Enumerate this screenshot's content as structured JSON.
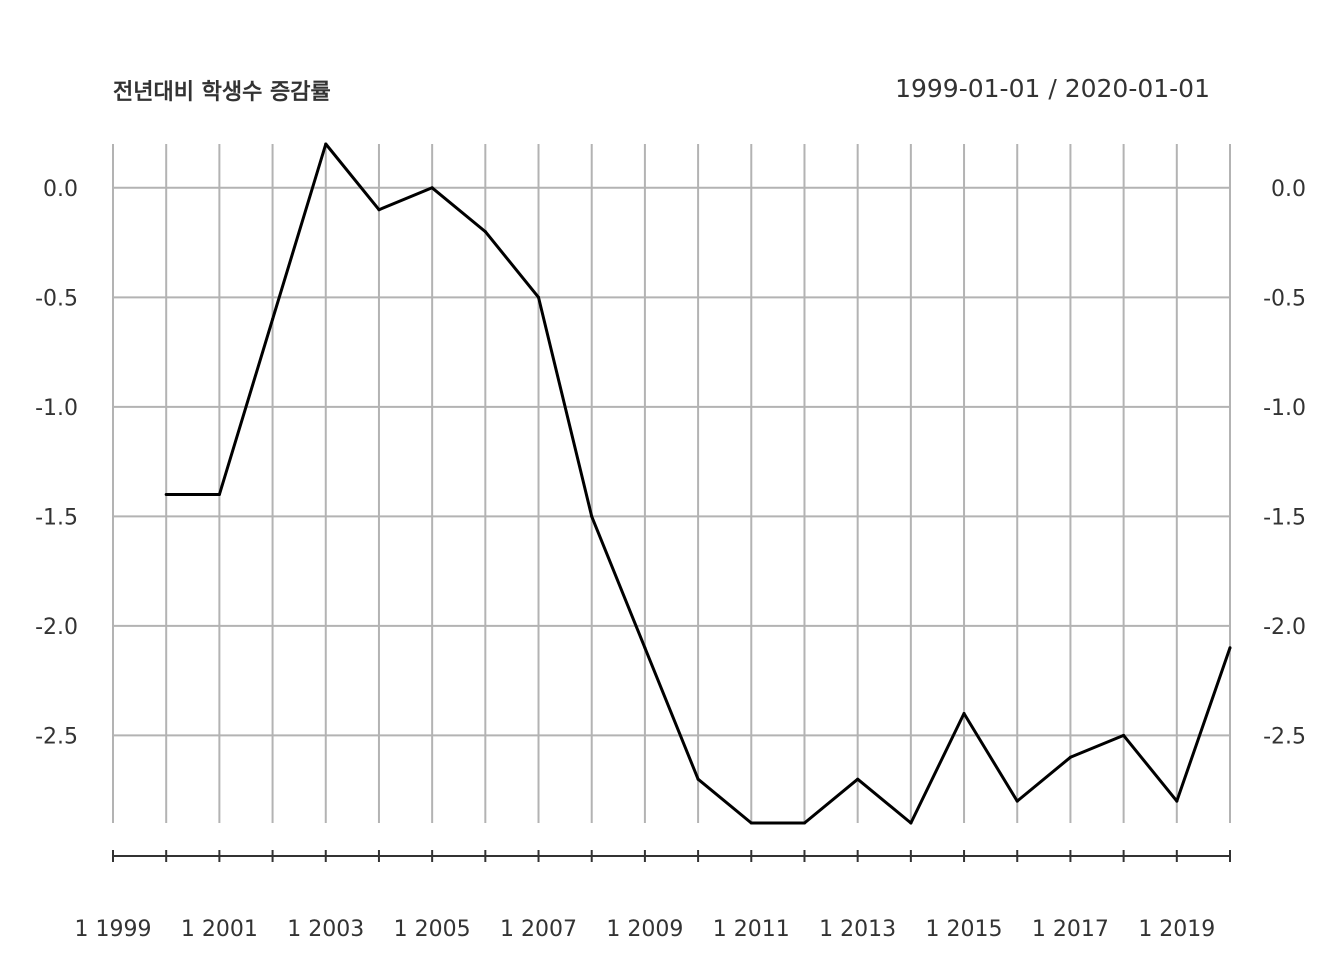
{
  "chart_data": {
    "type": "line",
    "title": "전년대비 학생수 증감률",
    "date_range": "1999-01-01 / 2020-01-01",
    "x": [
      2000,
      2001,
      2002,
      2003,
      2004,
      2005,
      2006,
      2007,
      2008,
      2009,
      2010,
      2011,
      2012,
      2013,
      2014,
      2015,
      2016,
      2017,
      2018,
      2019,
      2020
    ],
    "series": [
      {
        "values": [
          -1.4,
          -1.4,
          -0.6,
          0.2,
          -0.1,
          0.0,
          -0.2,
          -0.5,
          -1.5,
          -2.1,
          -2.7,
          -2.9,
          -2.9,
          -2.7,
          -2.9,
          -2.4,
          -2.8,
          -2.6,
          -2.5,
          -2.8,
          -2.1
        ]
      }
    ],
    "xlim": [
      1999,
      2020
    ],
    "ylim": [
      -2.9,
      0.2
    ],
    "y_ticks": [
      0.0,
      -0.5,
      -1.0,
      -1.5,
      -2.0,
      -2.5
    ],
    "y_tick_labels": [
      "0.0",
      "-0.5",
      "-1.0",
      "-1.5",
      "-2.0",
      "-2.5"
    ],
    "x_ticks": [
      1999,
      2000,
      2001,
      2002,
      2003,
      2004,
      2005,
      2006,
      2007,
      2008,
      2009,
      2010,
      2011,
      2012,
      2013,
      2014,
      2015,
      2016,
      2017,
      2018,
      2019,
      2020
    ],
    "x_tick_labels": [
      "1 1999",
      "1 2001",
      "1 2003",
      "1 2005",
      "1 2007",
      "1 2009",
      "1 2011",
      "1 2013",
      "1 2015",
      "1 2017",
      "1 2019"
    ],
    "x_tick_label_positions": [
      1999,
      2001,
      2003,
      2005,
      2007,
      2009,
      2011,
      2013,
      2015,
      2017,
      2019
    ],
    "grid": true,
    "line_color": "#000000",
    "grid_color": "#b3b3b3",
    "text_color": "#333333"
  }
}
